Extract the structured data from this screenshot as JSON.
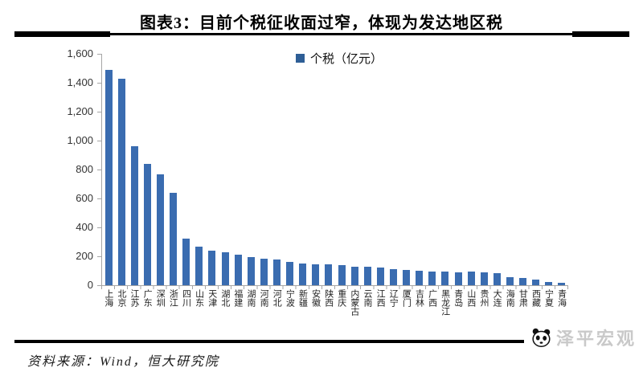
{
  "title": "图表3：目前个税征收面过窄，体现为发达地区税",
  "legend": {
    "label": "个税（亿元）",
    "swatch_color": "#2e5e96"
  },
  "source": "资料来源：Wind，恒大研究院",
  "watermark": "泽平宏观",
  "colors": {
    "bar": "#3a6cb0",
    "axis": "#a6a6a6",
    "title": "#000000",
    "watermark": "#c9c9c9"
  },
  "chart_data": {
    "type": "bar",
    "title": "图表3：目前个税征收面过窄，体现为发达地区税",
    "legend_entries": [
      "个税（亿元）"
    ],
    "legend_position": "top-center",
    "xlabel": "",
    "ylabel": "",
    "ylim": [
      0,
      1600
    ],
    "ytick_step": 200,
    "ytick_labels": [
      "1,600",
      "1,400",
      "1,200",
      "1,000",
      "800",
      "600",
      "400",
      "200",
      "0"
    ],
    "grid": false,
    "bar_color": "#3a6cb0",
    "categories": [
      "上海",
      "北京",
      "江苏",
      "广东",
      "深圳",
      "浙江",
      "四川",
      "山东",
      "天津",
      "湖北",
      "福建",
      "湖南",
      "河南",
      "河北",
      "宁波",
      "新疆",
      "安徽",
      "陕西",
      "重庆",
      "内蒙古",
      "云南",
      "江西",
      "辽宁",
      "厦门",
      "吉林",
      "广西",
      "黑龙江",
      "青岛",
      "山西",
      "贵州",
      "大连",
      "海南",
      "甘肃",
      "西藏",
      "宁夏",
      "青海"
    ],
    "values": [
      1490,
      1430,
      960,
      840,
      765,
      640,
      325,
      265,
      240,
      228,
      210,
      195,
      185,
      178,
      160,
      152,
      147,
      143,
      140,
      128,
      130,
      124,
      111,
      104,
      98,
      92,
      96,
      88,
      97,
      91,
      83,
      56,
      50,
      37,
      24,
      18
    ]
  }
}
